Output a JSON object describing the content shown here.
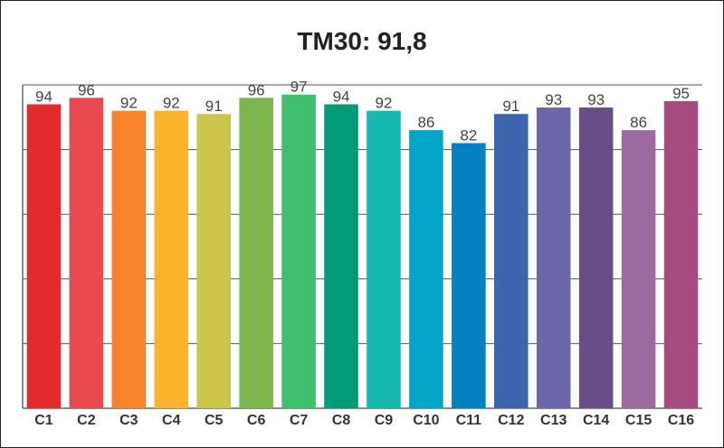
{
  "chart_data": {
    "type": "bar",
    "title": "TM30: 91,8",
    "categories": [
      "C1",
      "C2",
      "C3",
      "C4",
      "C5",
      "C6",
      "C7",
      "C8",
      "C9",
      "C10",
      "C11",
      "C12",
      "C13",
      "C14",
      "C15",
      "C16"
    ],
    "values": [
      94,
      96,
      92,
      92,
      91,
      96,
      97,
      94,
      92,
      86,
      82,
      91,
      93,
      93,
      86,
      95
    ],
    "colors": [
      "#e32a2c",
      "#e84a4f",
      "#f6822a",
      "#fbb22c",
      "#cbc64a",
      "#7db64c",
      "#40bf6c",
      "#009b79",
      "#16b8b0",
      "#00a6c6",
      "#0381c2",
      "#3d65ad",
      "#6c66ac",
      "#684d87",
      "#9d6aa0",
      "#a64b80"
    ],
    "ylim": [
      0,
      100
    ],
    "grid": true,
    "xlabel": "",
    "ylabel": ""
  }
}
